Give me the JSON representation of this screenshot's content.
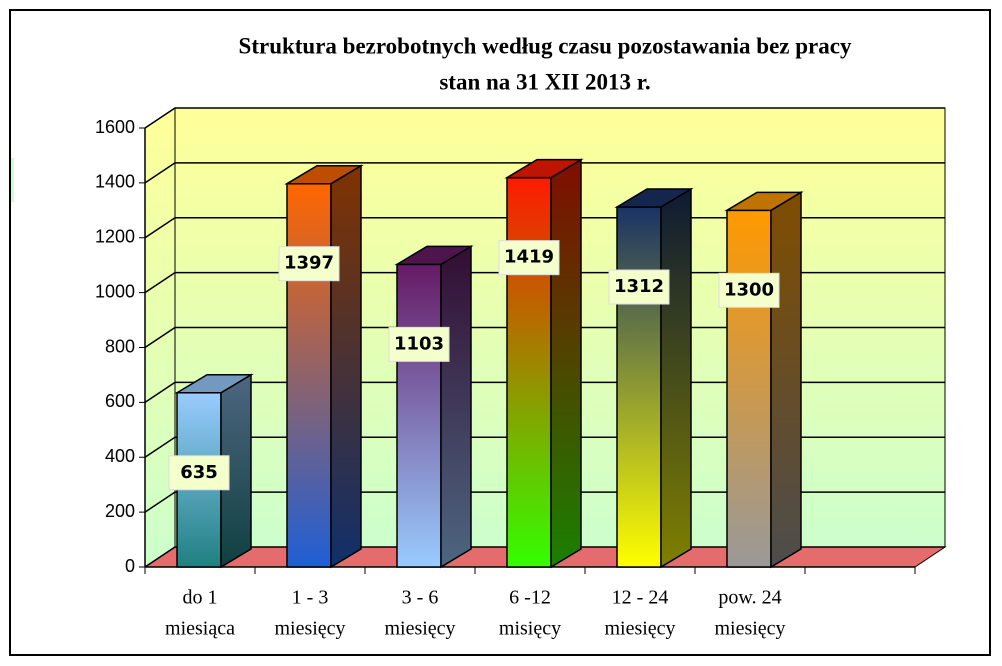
{
  "chart_data": {
    "type": "bar3d",
    "title": [
      "Struktura bezrobotnych według czasu pozostawania bez pracy",
      "stan na 31 XII 2013 r."
    ],
    "categories": [
      [
        "do 1",
        "miesiąca"
      ],
      [
        "1 - 3",
        "miesięcy"
      ],
      [
        "3 - 6",
        "miesięcy"
      ],
      [
        "6 -12",
        "misięcy"
      ],
      [
        "12 - 24",
        "miesięcy"
      ],
      [
        "pow. 24",
        "miesięcy"
      ]
    ],
    "values": [
      635,
      1397,
      1103,
      1419,
      1312,
      1300
    ],
    "colors": [
      [
        "#99ccff",
        "#1f8080"
      ],
      [
        "#ff6600",
        "#1f5fd6"
      ],
      [
        "#661a66",
        "#99ccff"
      ],
      [
        "#ff1a00",
        "#33ff00"
      ],
      [
        "#1a3366",
        "#ffff00"
      ],
      [
        "#ff9900",
        "#999999"
      ]
    ],
    "ylim": [
      0,
      1600
    ],
    "yticks": [
      0,
      200,
      400,
      600,
      800,
      1000,
      1200,
      1400,
      1600
    ],
    "grid": true
  }
}
